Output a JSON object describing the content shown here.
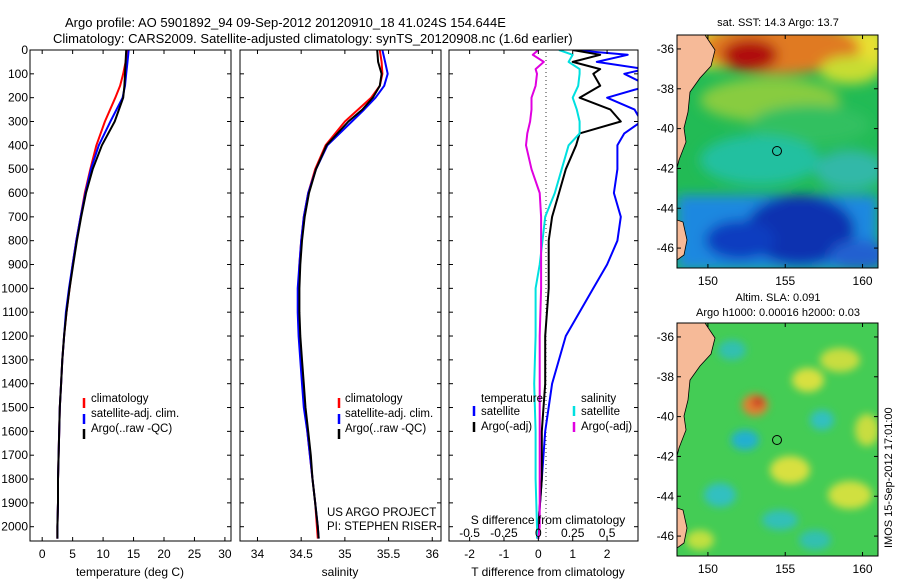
{
  "header": {
    "line1": "Argo profile: AO 5901892_94 09-Sep-2012 20120910_18 41.024S 154.644E",
    "line2": "Climatology: CARS2009. Satellite-adjusted climatology: synTS_20120908.nc (1.6d earlier)"
  },
  "colors": {
    "climatology": "#ff0000",
    "satellite": "#0000ff",
    "argo": "#000000",
    "salinity_satellite": "#00e0e0",
    "salinity_argo": "#e000e0",
    "land": "#f6ba98"
  },
  "depth_ticks": [
    "0",
    "100",
    "200",
    "300",
    "400",
    "500",
    "600",
    "700",
    "800",
    "900",
    "1000",
    "1100",
    "1200",
    "1300",
    "1400",
    "1500",
    "1600",
    "1700",
    "1800",
    "1900",
    "2000"
  ],
  "chart_data": [
    {
      "type": "line",
      "name": "temperature-profile",
      "xlabel": "temperature (deg C)",
      "ylabel": "",
      "xlim": [
        -2,
        31
      ],
      "ylim": [
        2060,
        0
      ],
      "xticks": [
        0,
        5,
        10,
        15,
        20,
        25,
        30
      ],
      "xtick_labels": [
        "0",
        "5",
        "10",
        "15",
        "20",
        "25",
        "30"
      ],
      "legend": [
        "climatology",
        "satellite-adj. clim.",
        "Argo(..raw -QC)"
      ],
      "depth": [
        0,
        50,
        100,
        150,
        200,
        300,
        400,
        500,
        600,
        700,
        800,
        900,
        1000,
        1100,
        1200,
        1300,
        1400,
        1500,
        1600,
        1700,
        1800,
        1900,
        2000,
        2050
      ],
      "series": [
        {
          "name": "climatology",
          "values": [
            14.0,
            13.7,
            13.3,
            12.8,
            12.0,
            10.3,
            8.9,
            7.9,
            7.0,
            6.3,
            5.6,
            5.0,
            4.5,
            4.0,
            3.6,
            3.3,
            3.1,
            2.9,
            2.8,
            2.7,
            2.6,
            2.6,
            2.5,
            2.5
          ]
        },
        {
          "name": "satellite-adj. clim.",
          "values": [
            14.2,
            14.0,
            13.8,
            13.6,
            13.2,
            11.2,
            9.3,
            8.0,
            7.1,
            6.3,
            5.6,
            5.0,
            4.4,
            3.9,
            3.6,
            3.3,
            3.1,
            2.9,
            2.8,
            2.7,
            2.6,
            2.6,
            2.5,
            2.5
          ]
        },
        {
          "name": "Argo(..raw -QC)",
          "values": [
            13.8,
            13.7,
            13.6,
            13.5,
            13.3,
            11.9,
            9.8,
            8.3,
            7.2,
            6.4,
            5.7,
            5.1,
            4.5,
            4.0,
            3.6,
            3.3,
            3.1,
            2.9,
            2.8,
            2.7,
            2.6,
            2.6,
            2.5,
            2.5
          ]
        }
      ]
    },
    {
      "type": "line",
      "name": "salinity-profile",
      "xlabel": "salinity",
      "ylabel": "",
      "xlim": [
        33.8,
        36.1
      ],
      "ylim": [
        2060,
        0
      ],
      "xticks": [
        34,
        34.5,
        35,
        35.5,
        36
      ],
      "xtick_labels": [
        "34",
        "34.5",
        "35",
        "35.5",
        "36"
      ],
      "legend": [
        "climatology",
        "satellite-adj. clim.",
        "Argo(..raw -QC)"
      ],
      "annotation": [
        "US ARGO PROJECT",
        "PI: STEPHEN RISER"
      ],
      "depth": [
        0,
        50,
        100,
        150,
        200,
        250,
        300,
        400,
        500,
        600,
        700,
        800,
        900,
        1000,
        1100,
        1200,
        1300,
        1400,
        1500,
        1600,
        1700,
        1800,
        1900,
        2000,
        2050
      ],
      "series": [
        {
          "name": "climatology",
          "values": [
            35.4,
            35.42,
            35.43,
            35.4,
            35.3,
            35.15,
            35.0,
            34.78,
            34.66,
            34.58,
            34.53,
            34.5,
            34.48,
            34.47,
            34.47,
            34.48,
            34.5,
            34.52,
            34.54,
            34.57,
            34.6,
            34.63,
            34.66,
            34.68,
            34.69
          ]
        },
        {
          "name": "satellite-adj. clim.",
          "values": [
            35.43,
            35.46,
            35.49,
            35.45,
            35.35,
            35.22,
            35.08,
            34.8,
            34.67,
            34.58,
            34.53,
            34.5,
            34.48,
            34.46,
            34.46,
            34.47,
            34.49,
            34.51,
            34.53,
            34.57,
            34.6,
            34.63,
            34.66,
            34.69,
            34.7
          ]
        },
        {
          "name": "Argo(..raw -QC)",
          "values": [
            35.37,
            35.38,
            35.42,
            35.4,
            35.32,
            35.2,
            35.04,
            34.79,
            34.67,
            34.59,
            34.54,
            34.51,
            34.49,
            34.48,
            34.48,
            34.49,
            34.51,
            34.53,
            34.55,
            34.58,
            34.61,
            34.63,
            34.66,
            34.69,
            34.7
          ]
        }
      ]
    },
    {
      "type": "line",
      "name": "difference-profile",
      "xlabel": "T difference from climatology",
      "x2label": "S difference from climatology",
      "xlim": [
        -2.6,
        2.9
      ],
      "ylim": [
        2060,
        0
      ],
      "xticks": [
        -2,
        -1,
        0,
        1,
        2
      ],
      "xtick_labels": [
        "-2",
        "-1",
        "0",
        "1",
        "2"
      ],
      "x2ticks": [
        -0.5,
        -0.25,
        0,
        0.25,
        0.5
      ],
      "x2tick_labels": [
        "-0.5",
        "-0.25",
        "0",
        "0.25",
        "0.5"
      ],
      "legend": {
        "temperature_title": "temperature",
        "salinity_title": "salinity",
        "entries": [
          "satellite",
          "Argo(-adj)",
          "satellite",
          "Argo(-adj)"
        ]
      },
      "depth": [
        0,
        20,
        50,
        80,
        100,
        150,
        200,
        250,
        300,
        350,
        400,
        500,
        600,
        700,
        800,
        900,
        1000,
        1200,
        1400,
        1600,
        1800,
        2000,
        2050
      ],
      "series": [
        {
          "name": "temperature satellite",
          "values": [
            1.0,
            2.6,
            1.7,
            3.1,
            2.5,
            3.2,
            2.0,
            2.8,
            3.0,
            2.5,
            2.3,
            2.3,
            2.2,
            2.4,
            2.3,
            2.0,
            1.6,
            0.8,
            0.4,
            0.2,
            0.1,
            0.0,
            0.0
          ]
        },
        {
          "name": "temperature Argo(-adj)",
          "values": [
            1.0,
            1.8,
            1.0,
            1.8,
            1.6,
            1.8,
            1.2,
            2.1,
            2.4,
            1.2,
            1.1,
            0.8,
            0.6,
            0.4,
            0.3,
            0.3,
            0.3,
            0.2,
            0.2,
            0.1,
            0.1,
            0.0,
            0.0
          ]
        },
        {
          "name": "salinity satellite",
          "values": [
            0.15,
            0.25,
            0.22,
            0.3,
            0.3,
            0.29,
            0.25,
            0.28,
            0.3,
            0.3,
            0.22,
            0.17,
            0.12,
            0.05,
            0.03,
            0.01,
            -0.02,
            -0.02,
            -0.03,
            -0.02,
            -0.02,
            -0.01,
            -0.01
          ]
        },
        {
          "name": "salinity Argo(-adj)",
          "values": [
            0.0,
            -0.04,
            0.04,
            -0.02,
            -0.01,
            -0.02,
            -0.05,
            -0.05,
            -0.06,
            -0.08,
            -0.09,
            -0.05,
            0.01,
            0.02,
            0.02,
            0.02,
            0.02,
            0.01,
            0.01,
            0.01,
            0.01,
            0.01,
            0.0
          ]
        }
      ]
    },
    {
      "type": "heatmap",
      "name": "sst-map",
      "title": "sat. SST: 14.3  Argo: 13.7",
      "xlim": [
        148,
        161
      ],
      "ylim": [
        -47,
        -35.3
      ],
      "xticks": [
        150,
        155,
        160
      ],
      "xtick_labels": [
        "150",
        "155",
        "160"
      ],
      "yticks": [
        -36,
        -38,
        -40,
        -42,
        -44,
        -46
      ],
      "ytick_labels": [
        "-36",
        "-38",
        "-40",
        "-42",
        "-44",
        "-46"
      ],
      "marker": {
        "lon": 154.644,
        "lat": -41.024
      }
    },
    {
      "type": "heatmap",
      "name": "sla-map",
      "title_lines": [
        "Altim. SLA: 0.091",
        "Argo h1000: 0.00016  h2000: 0.03"
      ],
      "xlim": [
        148,
        161
      ],
      "ylim": [
        -47,
        -35.3
      ],
      "xticks": [
        150,
        155,
        160
      ],
      "xtick_labels": [
        "150",
        "155",
        "160"
      ],
      "yticks": [
        -36,
        -38,
        -40,
        -42,
        -44,
        -46
      ],
      "ytick_labels": [
        "-36",
        "-38",
        "-40",
        "-42",
        "-44",
        "-46"
      ],
      "marker": {
        "lon": 154.644,
        "lat": -41.024
      },
      "side_label": "IMOS 15-Sep-2012 17:01:00"
    }
  ]
}
